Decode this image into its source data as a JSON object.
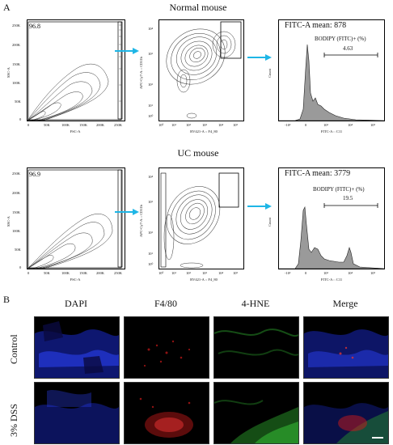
{
  "panel_a_label": "A",
  "panel_b_label": "B",
  "normal": {
    "title": "Normal mouse",
    "gate1_value": "96.8",
    "fitc_mean": "FITC-A mean: 878",
    "bodipy_label": "BODIPY (FITC)+ (%)",
    "bodipy_value": "4.63"
  },
  "uc": {
    "title": "UC mouse",
    "gate1_value": "96.9",
    "fitc_mean": "FITC-A mean: 3779",
    "bodipy_label": "BODIPY (FITC)+ (%)",
    "bodipy_value": "19.5"
  },
  "axes": {
    "fsc_x": "FSC-A",
    "ssc_y": "SSC-A",
    "bv_x": "BV421-A :: F4_80",
    "apc_y": "APC-Cy7-A :: CD11b",
    "fitc_x": "FITC-A :: C11",
    "count_y": "Count",
    "lin_ticks_y": [
      "250K",
      "200K",
      "150K",
      "100K",
      "50K",
      "0"
    ],
    "lin_ticks_x": [
      "0",
      "50K",
      "100K",
      "150K",
      "200K",
      "250K"
    ],
    "log_ticks_y": [
      "10⁴",
      "10³",
      "10²",
      "10¹",
      "10⁰"
    ],
    "log_ticks_x": [
      "10⁰",
      "10¹",
      "10²",
      "10³",
      "10⁴",
      "10⁵"
    ],
    "hist_ticks_x": [
      "-10³",
      "0",
      "10³",
      "10⁴",
      "10⁵"
    ]
  },
  "panel_b": {
    "columns": [
      "DAPI",
      "F4/80",
      "4-HNE",
      "Merge"
    ],
    "rows": [
      "Control",
      "3% DSS"
    ]
  },
  "colors": {
    "arrow": "#1fb6e6",
    "dapi": "#1a2acc",
    "f480": "#cc1a1a",
    "hne": "#2a9a2a"
  }
}
